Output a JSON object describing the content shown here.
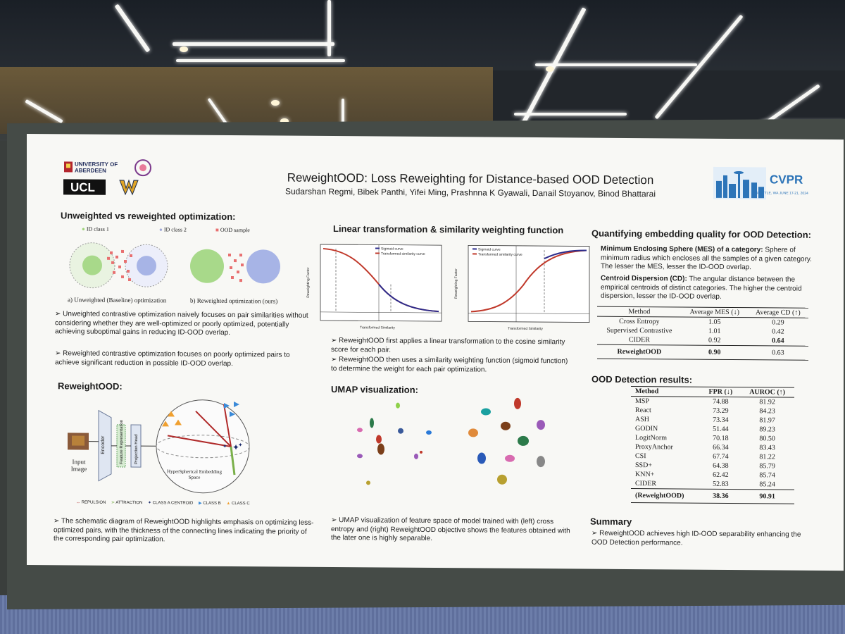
{
  "poster": {
    "title": "ReweightOOD: Loss Reweighting for Distance-based OOD Detection",
    "authors": "Sudarshan Regmi, Bibek Panthi, Yifei Ming, Prashnna K Gyawali, Danail Stoyanov, Binod Bhattarai",
    "logos": {
      "aberdeen": "UNIVERSITY OF ABERDEEN",
      "ucl": "UCL",
      "cvpr": "CVPR",
      "cvpr_sub": "SEATTLE, WA  JUNE 17-21, 2024"
    },
    "section1": {
      "heading": "Unweighted vs reweighted optimization:",
      "legend": [
        "ID class 1",
        "ID class 2",
        "OOD sample"
      ],
      "caption_a": "a) Unweighted (Baseline) optimization",
      "caption_b": "b) Reweighted optimization (ours)",
      "bullet1": "Unweighted contrastive optimization naively focuses on pair similarities without considering whether they are well-optimized or poorly optimized, potentially achieving suboptimal gains in reducing ID-OOD overlap.",
      "bullet2": "Reweighted contrastive optimization focuses on poorly optimized pairs to achieve significant reduction in possible ID-OOD overlap."
    },
    "section2": {
      "heading": "ReweightOOD:",
      "input_label": "Input Image",
      "encoder": "Encoder",
      "feature": "Feature Representation",
      "projection": "Projection Head",
      "space_label": "HyperSpherical Embedding Space",
      "legend": [
        "REPULSION",
        "ATTRACTION",
        "CLASS A CENTROID",
        "CLASS B",
        "CLASS C"
      ],
      "bullet": "The schematic diagram of ReweightOOD highlights emphasis on optimizing less-optimized pairs, with the thickness of the connecting lines indicating the priority of the corresponding pair optimization."
    },
    "section3": {
      "heading": "Linear transformation & similarity weighting function",
      "plot1": {
        "legend": [
          "Sigmoid curve",
          "Transformed similarity curve"
        ],
        "ylabel": "Reweighting Factor",
        "xlabel": "Transformed Similarity"
      },
      "plot2": {
        "legend": [
          "Sigmoid curve",
          "Transformed similarity curve"
        ],
        "ylabel": "Reweighting Factor",
        "xlabel": "Transformed Similarity"
      },
      "bullet1": "ReweightOOD first applies a linear transformation to the cosine similarity score for each pair.",
      "bullet2": "ReweightOOD then uses a similarity weighting function (sigmoid function) to determine the weight for each pair optimization."
    },
    "section4": {
      "heading": "UMAP visualization:",
      "bullet": "UMAP visualization of feature space of model trained with (left) cross entropy and (right) ReweightOOD objective shows the features obtained with the later one is highly separable."
    },
    "section5": {
      "heading": "Quantifying embedding quality for OOD Detection:",
      "mes_term": "Minimum Enclosing Sphere (MES) of a category:",
      "mes_def": "Sphere of minimum radius which encloses all the samples of a given category. The lesser the MES, lesser the ID-OOD overlap.",
      "cd_term": "Centroid Dispersion (CD):",
      "cd_def": "The angular distance between the empirical centroids of distinct categories. The higher the centroid dispersion, lesser the ID-OOD overlap.",
      "table": {
        "headers": [
          "Method",
          "Average MES (↓)",
          "Average CD (↑)"
        ],
        "rows": [
          [
            "Cross Entropy",
            "1.05",
            "0.29"
          ],
          [
            "Supervised Contrastive",
            "1.01",
            "0.42"
          ],
          [
            "CIDER",
            "0.92",
            "0.64"
          ],
          [
            "ReweightOOD",
            "0.90",
            "0.63"
          ]
        ]
      }
    },
    "section6": {
      "heading": "OOD Detection results:",
      "table": {
        "headers": [
          "Method",
          "FPR (↓)",
          "AUROC (↑)"
        ],
        "rows": [
          [
            "MSP",
            "74.88",
            "81.92"
          ],
          [
            "React",
            "73.29",
            "84.23"
          ],
          [
            "ASH",
            "73.34",
            "81.97"
          ],
          [
            "GODIN",
            "51.44",
            "89.23"
          ],
          [
            "LogitNorm",
            "70.18",
            "80.50"
          ],
          [
            "ProxyAnchor",
            "66.34",
            "83.43"
          ],
          [
            "CSI",
            "67.74",
            "81.22"
          ],
          [
            "SSD+",
            "64.38",
            "85.79"
          ],
          [
            "KNN+",
            "62.42",
            "85.74"
          ],
          [
            "CIDER",
            "52.83",
            "85.24"
          ],
          [
            "(ReweightOOD)",
            "38.36",
            "90.91"
          ]
        ]
      }
    },
    "section7": {
      "heading": "Summary",
      "bullet": "ReweightOOD achieves high ID-OOD separability enhancing the OOD Detection performance."
    }
  }
}
